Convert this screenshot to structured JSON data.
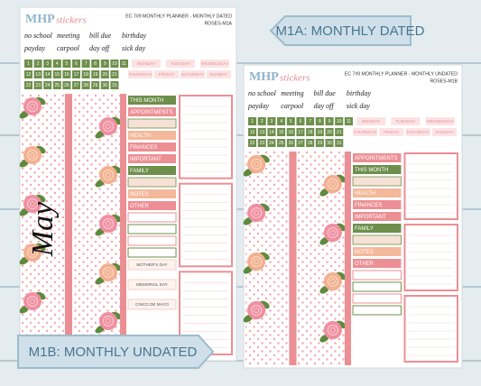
{
  "tags": [
    "M1A: MONTHLY DATED",
    "M1B: MONTHLY UNDATED"
  ],
  "sheets": [
    {
      "logo": {
        "brand": "MHP",
        "word": "stickers"
      },
      "header": "EC 7#9 MONTHLY PLANNER - MONTHLY DATED",
      "code": "ROSES-M1A",
      "words": [
        "no school",
        "meeting",
        "bill due",
        "birthday",
        "payday",
        "carpool",
        "day off",
        "sick day"
      ],
      "days": [
        "MONDAY",
        "TUESDAY",
        "WEDNESDAY",
        "THURSDAY",
        "FRIDAY",
        "SATURDAY",
        "SUNDAY"
      ],
      "numbers": [
        1,
        2,
        3,
        4,
        5,
        6,
        7,
        8,
        9,
        10,
        11,
        12,
        13,
        14,
        15,
        16,
        17,
        18,
        19,
        20,
        21,
        22,
        23,
        24,
        25,
        26,
        27,
        28,
        29,
        30,
        31
      ],
      "labels": [
        "THIS MONTH",
        "APPOINTMENTS",
        "HEALTH",
        "FINANCES",
        "IMPORTANT",
        "FAMILY",
        "NOTES",
        "OTHER"
      ],
      "holidays": [
        "MOTHER'S DAY",
        "MEMORIAL DAY",
        "CINCO DE MAYO"
      ],
      "month": "May"
    },
    {
      "logo": {
        "brand": "MHP",
        "word": "stickers"
      },
      "header": "EC 7#9 MONTHLY PLANNER - MONTHLY UNDATED",
      "code": "ROSES-M1B",
      "words": [
        "no school",
        "meeting",
        "bill due",
        "birthday",
        "payday",
        "carpool",
        "day off",
        "sick day"
      ],
      "days": [
        "MONDAY",
        "TUESDAY",
        "WEDNESDAY",
        "THURSDAY",
        "FRIDAY",
        "SATURDAY",
        "SUNDAY"
      ],
      "numbers": [
        1,
        2,
        3,
        4,
        5,
        6,
        7,
        8,
        9,
        10,
        11,
        12,
        13,
        14,
        15,
        16,
        17,
        18,
        19,
        20,
        21,
        22,
        23,
        24,
        25,
        26,
        27,
        28,
        29,
        30,
        31
      ],
      "labels": [
        "APPOINTMENTS",
        "THIS MONTH",
        "HEALTH",
        "FINANCES",
        "IMPORTANT",
        "FAMILY",
        "NOTES",
        "OTHER"
      ]
    }
  ]
}
